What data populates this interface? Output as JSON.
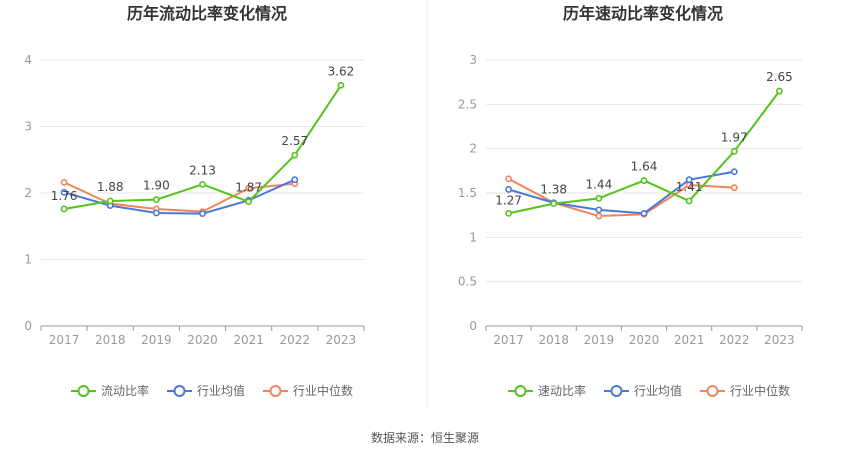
{
  "source_label": "数据来源：恒生聚源",
  "colors": {
    "company": "#52c41a",
    "industry_avg": "#4a78d8",
    "industry_median": "#f0855b"
  },
  "chart_data": [
    {
      "type": "line",
      "title": "历年流动比率变化情况",
      "x": [
        "2017",
        "2018",
        "2019",
        "2020",
        "2021",
        "2022",
        "2023"
      ],
      "ylim": [
        0,
        4
      ],
      "yticks": [
        0,
        1,
        2,
        3,
        4
      ],
      "ytick_labels": [
        "0",
        "1",
        "2",
        "3",
        "4"
      ],
      "grid": true,
      "legend": "bottom",
      "series": [
        {
          "name": "流动比率",
          "color": "#52c41a",
          "values": [
            1.76,
            1.88,
            1.9,
            2.13,
            1.87,
            2.57,
            3.62
          ],
          "labels": [
            "1.76",
            "1.88",
            "1.90",
            "2.13",
            "1.87",
            "2.57",
            "3.62"
          ]
        },
        {
          "name": "行业均值",
          "color": "#4a78d8",
          "values": [
            2.01,
            1.81,
            1.7,
            1.69,
            1.89,
            2.2,
            null
          ]
        },
        {
          "name": "行业中位数",
          "color": "#f0855b",
          "values": [
            2.16,
            1.84,
            1.76,
            1.72,
            2.07,
            2.14,
            null
          ]
        }
      ]
    },
    {
      "type": "line",
      "title": "历年速动比率变化情况",
      "x": [
        "2017",
        "2018",
        "2019",
        "2020",
        "2021",
        "2022",
        "2023"
      ],
      "ylim": [
        0,
        3
      ],
      "yticks": [
        0,
        0.5,
        1,
        1.5,
        2,
        2.5,
        3
      ],
      "ytick_labels": [
        "0",
        "0.5",
        "1",
        "1.5",
        "2",
        "2.5",
        "3"
      ],
      "grid": true,
      "legend": "bottom",
      "series": [
        {
          "name": "速动比率",
          "color": "#52c41a",
          "values": [
            1.27,
            1.38,
            1.44,
            1.64,
            1.41,
            1.97,
            2.65
          ],
          "labels": [
            "1.27",
            "1.38",
            "1.44",
            "1.64",
            "1.41",
            "1.97",
            "2.65"
          ]
        },
        {
          "name": "行业均值",
          "color": "#4a78d8",
          "values": [
            1.54,
            1.39,
            1.31,
            1.27,
            1.65,
            1.74,
            null
          ]
        },
        {
          "name": "行业中位数",
          "color": "#f0855b",
          "values": [
            1.66,
            1.39,
            1.24,
            1.26,
            1.59,
            1.56,
            null
          ]
        }
      ]
    }
  ]
}
